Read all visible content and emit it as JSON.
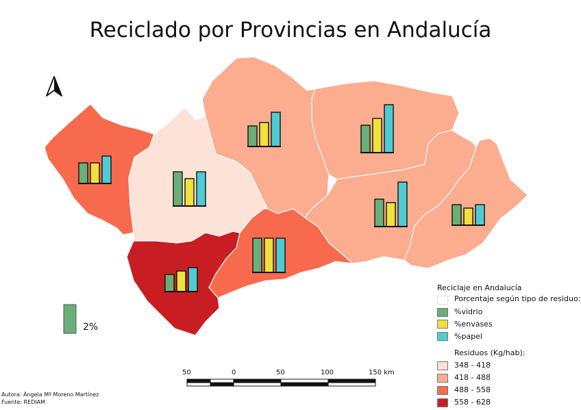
{
  "title": "Reciclado por Provincias en Andalucía",
  "colors": {
    "class_348_418": "#fde2d7",
    "class_418_488": "#fcac8f",
    "class_488_558": "#f86a4d",
    "class_558_628": "#c81d22",
    "vidrio": "#6aaf78",
    "envases": "#eee23c",
    "papel": "#4fcbd2",
    "border": "#ffffff"
  },
  "provinces": [
    {
      "class": "488 - 558",
      "vidrio": 3,
      "envases": 3,
      "papel": 4
    },
    {
      "class": "348 - 418",
      "vidrio": 5,
      "envases": 4,
      "papel": 5
    },
    {
      "class": "418 - 488",
      "vidrio": 3,
      "envases": 3.5,
      "papel": 5
    },
    {
      "class": "418 - 488",
      "vidrio": 4,
      "envases": 5,
      "papel": 7
    },
    {
      "class": "418 - 488",
      "vidrio": 4,
      "envases": 3.5,
      "papel": 6.5
    },
    {
      "class": "418 - 488",
      "vidrio": 3,
      "envases": 2.5,
      "papel": 3
    },
    {
      "class": "558 - 628",
      "vidrio": 2.5,
      "envases": 3,
      "papel": 3.5
    },
    {
      "class": "488 - 558",
      "vidrio": 5,
      "envases": 5,
      "papel": 5
    }
  ],
  "size_reference": {
    "value": 2,
    "label": "2%"
  },
  "legend": {
    "title": "Reciclaje en Andalucía",
    "chart_subtitle": "Porcentaje según tipo de residuo:",
    "chart_items": [
      {
        "label": "%vidrio",
        "color": "#6aaf78"
      },
      {
        "label": "%envases",
        "color": "#eee23c"
      },
      {
        "label": "%papel",
        "color": "#4fcbd2"
      }
    ],
    "class_title": "Residuos (Kg/hab):",
    "class_items": [
      {
        "label": "348 - 418",
        "color": "#fde2d7"
      },
      {
        "label": "418 - 488",
        "color": "#fcac8f"
      },
      {
        "label": "488 - 558",
        "color": "#f86a4d"
      },
      {
        "label": "558 - 628",
        "color": "#c81d22"
      }
    ]
  },
  "scale_bar": {
    "labels": [
      "50",
      "0",
      "50",
      "100",
      "150 km"
    ]
  },
  "credits": {
    "author": "Autora: Ángela Mª Moreno Martínez",
    "source": "Fuente: REDIAM"
  }
}
